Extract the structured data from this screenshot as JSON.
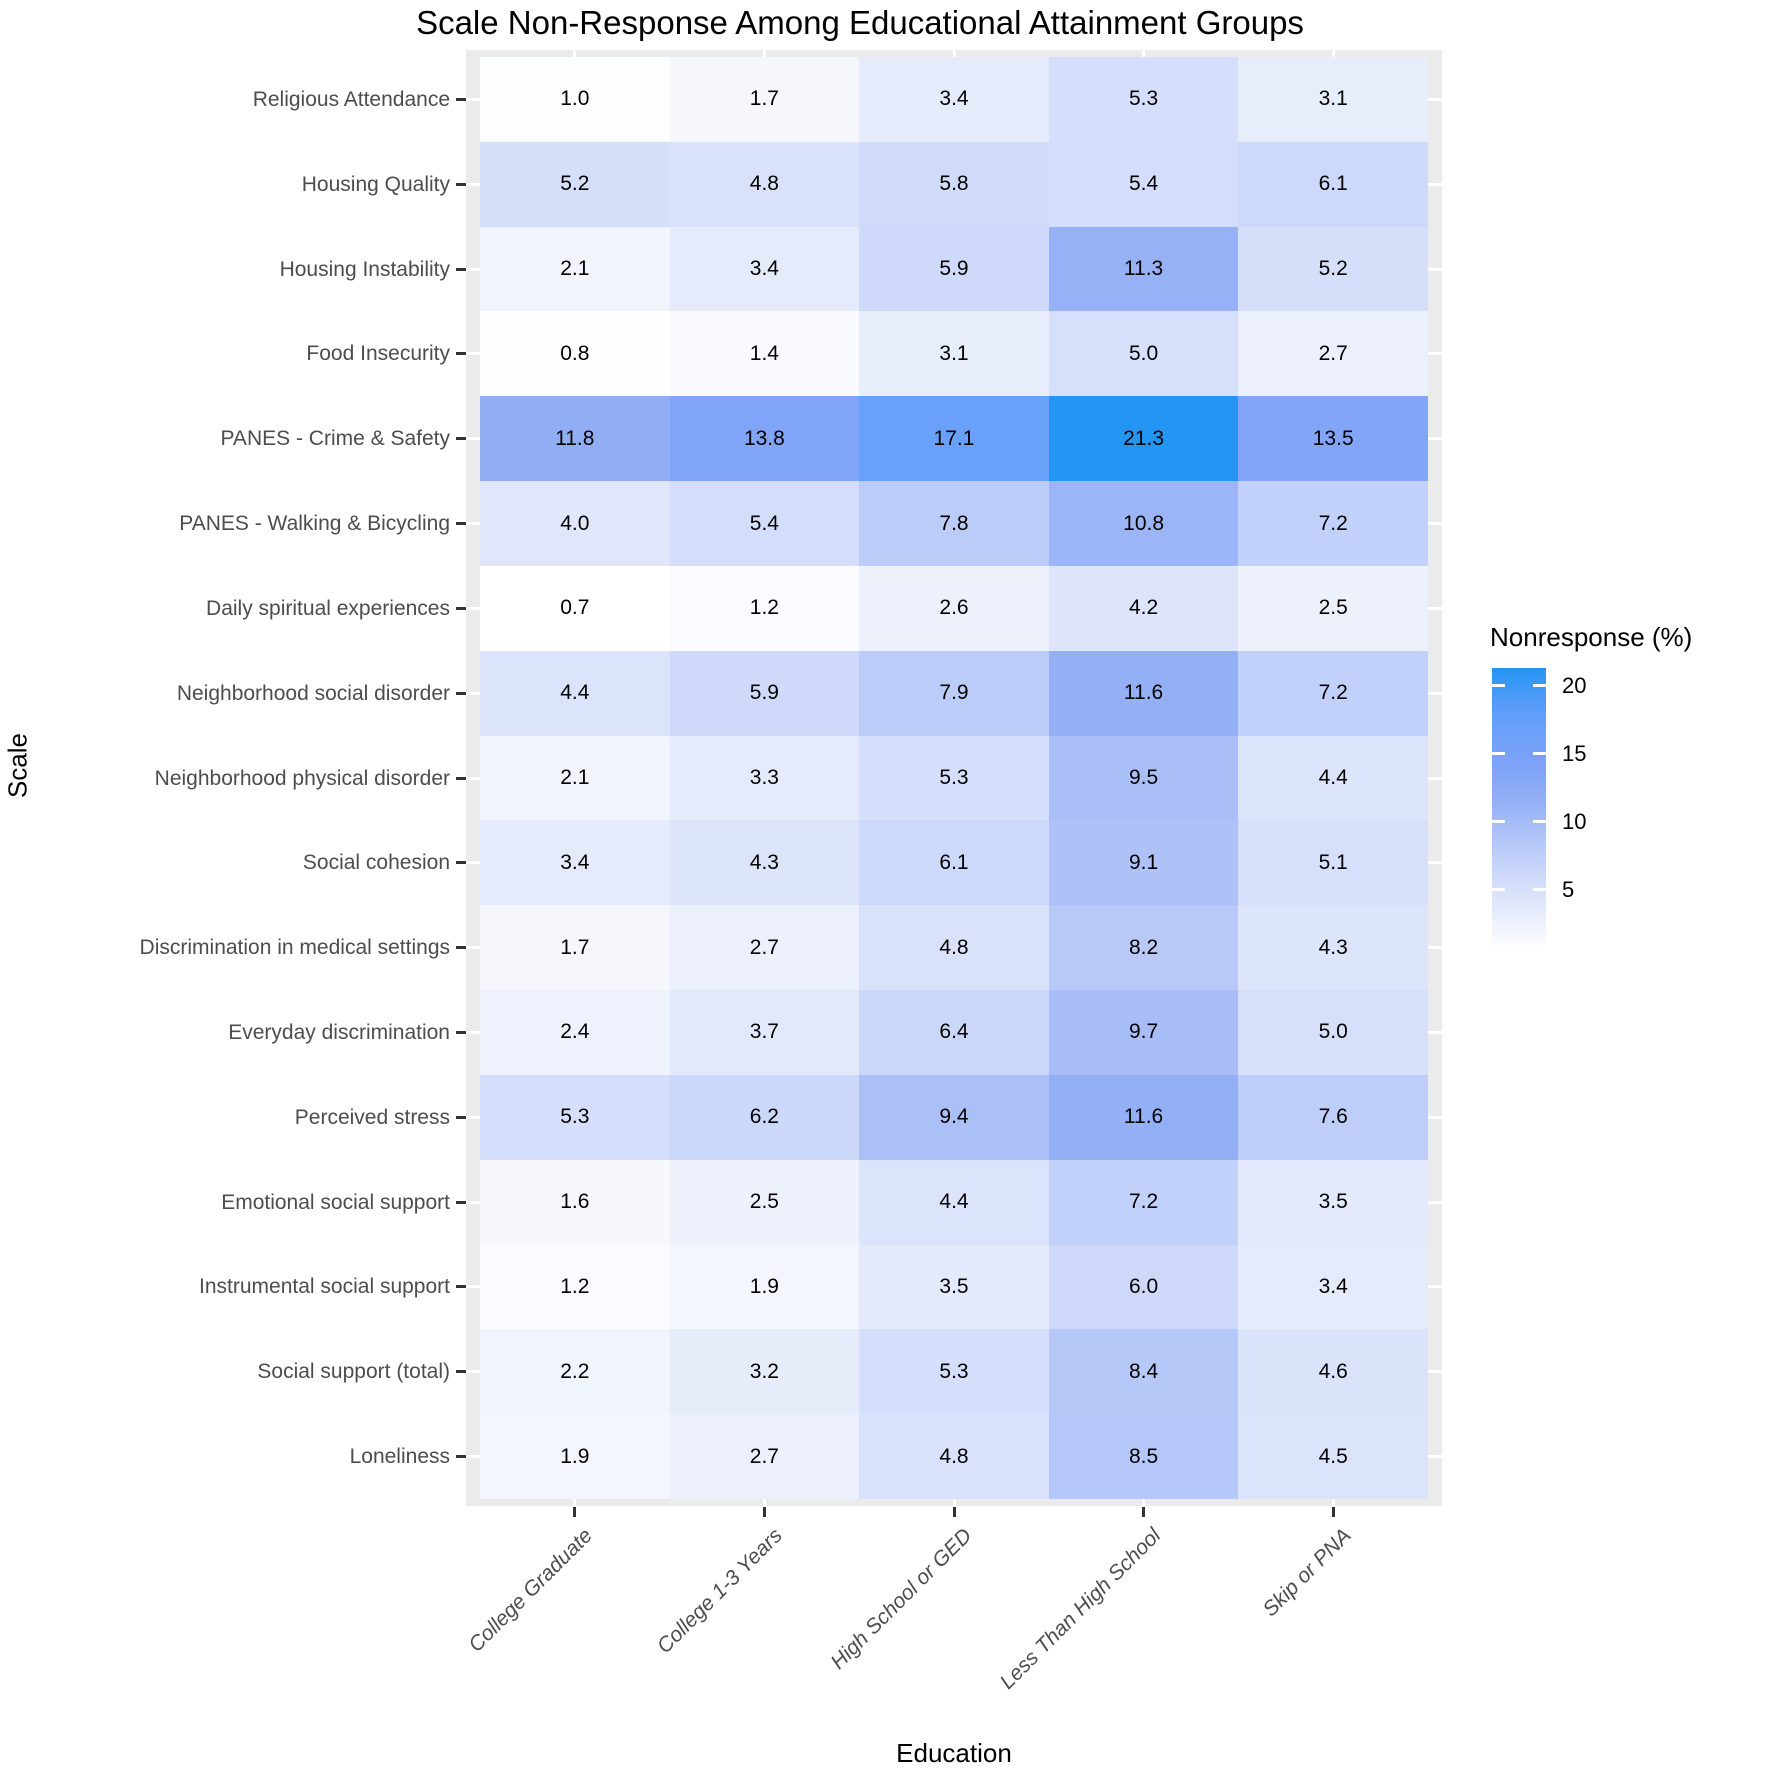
{
  "title": "Scale Non-Response Among Educational Attainment Groups",
  "chart_data": {
    "type": "heatmap",
    "title": "Scale Non-Response Among Educational Attainment Groups",
    "xlabel": "Education",
    "ylabel": "Scale",
    "grid": false,
    "panel_background": "#EBEBEB",
    "categories_x": [
      "College Graduate",
      "College 1-3 Years",
      "High School or GED",
      "Less Than High School",
      "Skip or PNA"
    ],
    "categories_y": [
      "Religious Attendance",
      "Housing Quality",
      "Housing Instability",
      "Food Insecurity",
      "PANES - Crime & Safety",
      "PANES - Walking & Bicycling",
      "Daily spiritual experiences",
      "Neighborhood social disorder",
      "Neighborhood physical disorder",
      "Social cohesion",
      "Discrimination in medical settings",
      "Everyday discrimination",
      "Perceived stress",
      "Emotional social support",
      "Instrumental social support",
      "Social support (total)",
      "Loneliness"
    ],
    "values": [
      [
        1.0,
        1.7,
        3.4,
        5.3,
        3.1
      ],
      [
        5.2,
        4.8,
        5.8,
        5.4,
        6.1
      ],
      [
        2.1,
        3.4,
        5.9,
        11.3,
        5.2
      ],
      [
        0.8,
        1.4,
        3.1,
        5.0,
        2.7
      ],
      [
        11.8,
        13.8,
        17.1,
        21.3,
        13.5
      ],
      [
        4.0,
        5.4,
        7.8,
        10.8,
        7.2
      ],
      [
        0.7,
        1.2,
        2.6,
        4.2,
        2.5
      ],
      [
        4.4,
        5.9,
        7.9,
        11.6,
        7.2
      ],
      [
        2.1,
        3.3,
        5.3,
        9.5,
        4.4
      ],
      [
        3.4,
        4.3,
        6.1,
        9.1,
        5.1
      ],
      [
        1.7,
        2.7,
        4.8,
        8.2,
        4.3
      ],
      [
        2.4,
        3.7,
        6.4,
        9.7,
        5.0
      ],
      [
        5.3,
        6.2,
        9.4,
        11.6,
        7.6
      ],
      [
        1.6,
        2.5,
        4.4,
        7.2,
        3.5
      ],
      [
        1.2,
        1.9,
        3.5,
        6.0,
        3.4
      ],
      [
        2.2,
        3.2,
        5.3,
        8.4,
        4.6
      ],
      [
        1.9,
        2.7,
        4.8,
        8.5,
        4.5
      ]
    ],
    "value_format_decimals": 1,
    "legend": {
      "title": "Nonresponse (%)",
      "position": "right",
      "ticks": [
        5,
        10,
        15,
        20
      ],
      "range": [
        0.7,
        21.3
      ]
    },
    "color_scale": {
      "low": "#FFFFFF",
      "high": "#2396F3",
      "anchors": [
        [
          0.7,
          [
            255,
            255,
            255
          ]
        ],
        [
          2.0,
          [
            242,
            245,
            253
          ]
        ],
        [
          3.5,
          [
            228,
            234,
            251
          ]
        ],
        [
          5.5,
          [
            211,
            221,
            250
          ]
        ],
        [
          8.0,
          [
            186,
            203,
            248
          ]
        ],
        [
          11.5,
          [
            148,
            175,
            245
          ]
        ],
        [
          14.0,
          [
            126,
            163,
            247
          ]
        ],
        [
          17.0,
          [
            106,
            160,
            250
          ]
        ],
        [
          19.0,
          [
            80,
            155,
            248
          ]
        ],
        [
          21.3,
          [
            35,
            150,
            243
          ]
        ]
      ]
    }
  }
}
